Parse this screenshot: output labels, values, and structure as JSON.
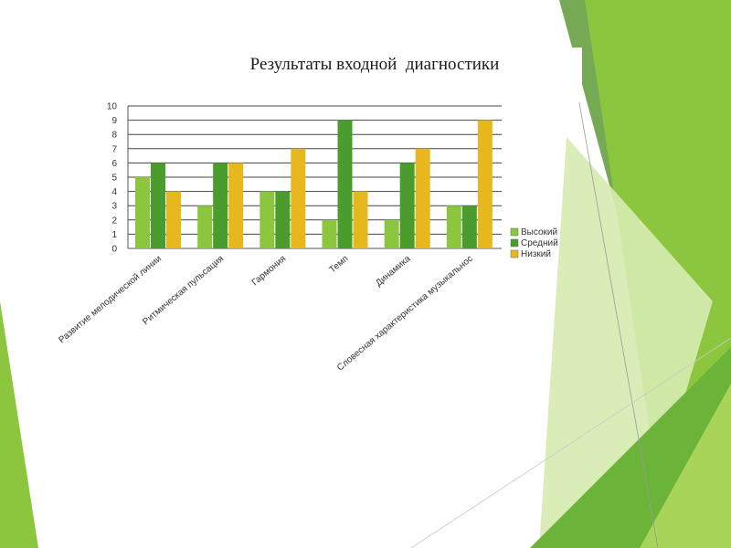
{
  "colors": {
    "high": "#8cc63e",
    "medium": "#4a9d2c",
    "low": "#e6b81e",
    "deco_light": "#b9dc6e",
    "deco_mid": "#8cc63e",
    "deco_dark": "#5e9a36"
  },
  "chart_data": {
    "type": "bar",
    "title": "Результаты входной  диагностики",
    "categories": [
      "Развитие мелодической линии",
      "Ритмическая пульсация",
      "Гармония",
      "Темп",
      "Динамика",
      "Словесная характеристика музыкальнос"
    ],
    "series": [
      {
        "name": "Высокий",
        "values": [
          5,
          3,
          4,
          2,
          2,
          3
        ]
      },
      {
        "name": "Средний",
        "values": [
          6,
          6,
          4,
          9,
          6,
          3
        ]
      },
      {
        "name": "Низкий",
        "values": [
          4,
          6,
          7,
          4,
          7,
          9
        ]
      }
    ],
    "yticks": [
      "0",
      "1",
      "2",
      "3",
      "4",
      "5",
      "6",
      "7",
      "8",
      "9",
      "10"
    ],
    "ylim": [
      0,
      10
    ],
    "grid": true,
    "legend": "right"
  }
}
